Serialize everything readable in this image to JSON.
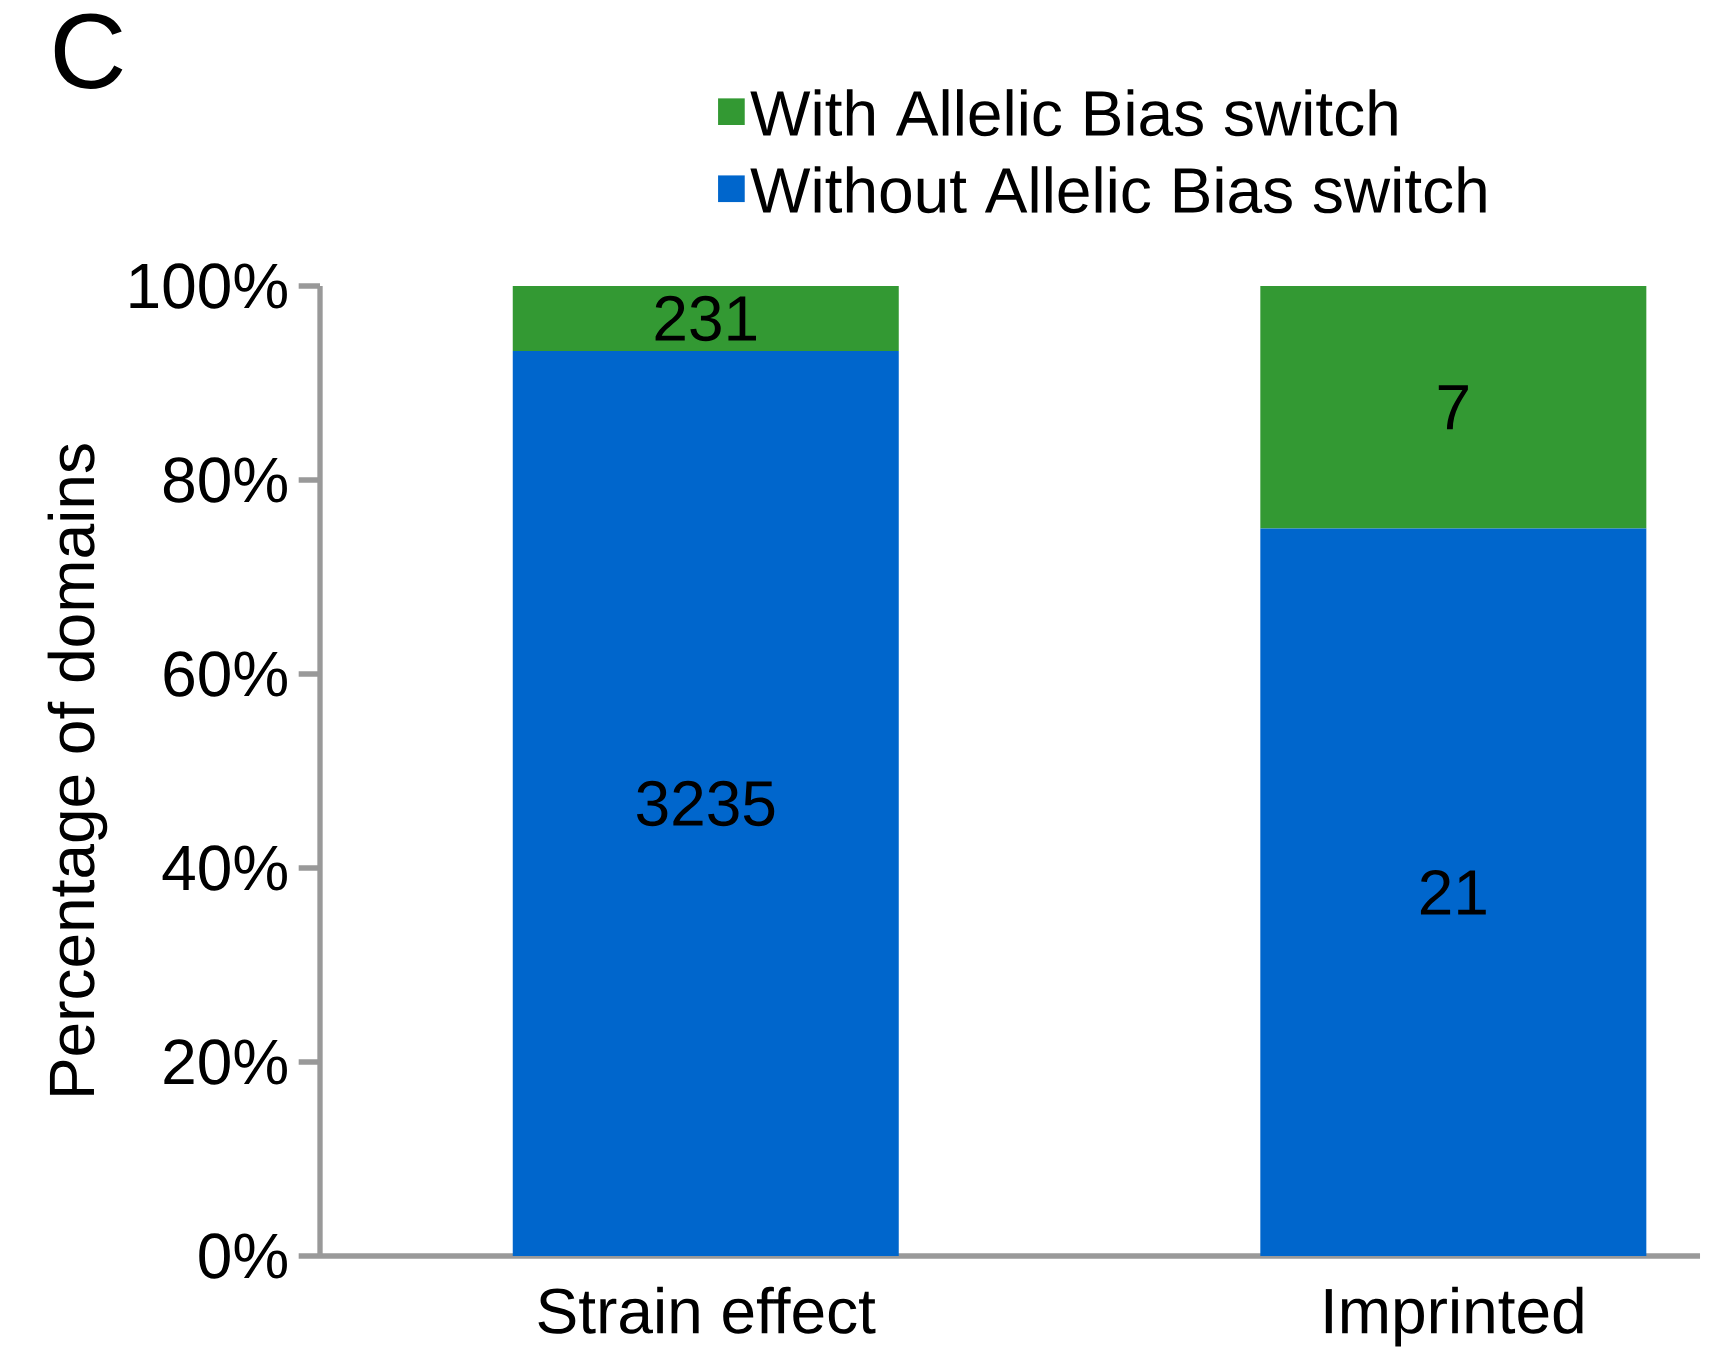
{
  "chart_data": {
    "type": "bar",
    "stacked": true,
    "categories": [
      "Strain effect",
      "Imprinted"
    ],
    "series": [
      {
        "name": "Without Allelic Bias switch",
        "color": "#0066cc",
        "values": [
          93.3,
          75
        ]
      },
      {
        "name": "With Allelic Bias switch",
        "color": "#339933",
        "values": [
          6.7,
          25
        ]
      }
    ],
    "ylabel": "Percentage of domains",
    "ylim": [
      0,
      100
    ],
    "yticks": [
      {
        "value": 0,
        "label": "0%"
      },
      {
        "value": 20,
        "label": "20%"
      },
      {
        "value": 40,
        "label": "40%"
      },
      {
        "value": 60,
        "label": "60%"
      },
      {
        "value": 80,
        "label": "80%"
      },
      {
        "value": 100,
        "label": "100%"
      }
    ],
    "annotations": [
      "C",
      "3235",
      "21",
      "231",
      "7"
    ],
    "legend": "top",
    "grid": false
  }
}
